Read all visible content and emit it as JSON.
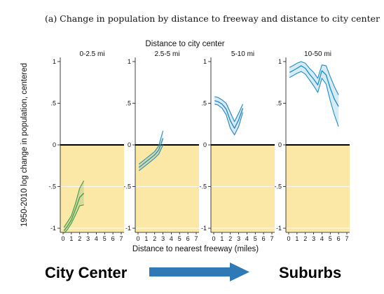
{
  "caption": "(a) Change in population by distance to freeway and distance to city center",
  "chart_data": {
    "type": "line",
    "title": "Distance to city center",
    "xlabel": "Distance to nearest freeway (miles)",
    "ylabel": "1950-2010 log change in population, centered",
    "ylim": [
      -1.05,
      1.05
    ],
    "xlim": [
      0,
      7
    ],
    "xticks": [
      "0",
      "1",
      "2",
      "3",
      "4",
      "5",
      "6",
      "7"
    ],
    "yticks": [
      {
        "value": 1,
        "label": "1"
      },
      {
        "value": 0.5,
        "label": ".5"
      },
      {
        "value": 0,
        "label": "0"
      },
      {
        "value": -0.5,
        "label": "-.5"
      },
      {
        "value": -1,
        "label": "-1"
      }
    ],
    "shading": "below zero (yellow)",
    "panels": [
      {
        "name": "0-2.5 mi",
        "color": "#3f9a52",
        "x": [
          0.1,
          0.5,
          1.0,
          1.5,
          2.0,
          2.5
        ],
        "y": [
          -1.03,
          -0.98,
          -0.9,
          -0.77,
          -0.63,
          -0.58
        ],
        "lower": [
          -1.06,
          -1.02,
          -0.94,
          -0.84,
          -0.73,
          -0.72
        ],
        "upper": [
          -0.99,
          -0.93,
          -0.85,
          -0.7,
          -0.52,
          -0.43
        ]
      },
      {
        "name": "2.5-5 mi",
        "color": "#2e8fb3",
        "x": [
          0.1,
          0.5,
          1.0,
          1.5,
          2.0,
          2.5,
          3.0
        ],
        "y": [
          -0.27,
          -0.24,
          -0.2,
          -0.16,
          -0.12,
          -0.06,
          0.08
        ],
        "lower": [
          -0.31,
          -0.28,
          -0.24,
          -0.2,
          -0.16,
          -0.11,
          0.0
        ],
        "upper": [
          -0.23,
          -0.2,
          -0.16,
          -0.12,
          -0.08,
          -0.01,
          0.17
        ]
      },
      {
        "name": "5-10 mi",
        "color": "#1f86c0",
        "x": [
          0.1,
          0.5,
          1.0,
          1.5,
          2.0,
          2.5,
          3.0,
          3.5
        ],
        "y": [
          0.53,
          0.52,
          0.49,
          0.43,
          0.29,
          0.2,
          0.3,
          0.44
        ],
        "lower": [
          0.49,
          0.48,
          0.44,
          0.36,
          0.2,
          0.12,
          0.22,
          0.39
        ],
        "upper": [
          0.58,
          0.57,
          0.54,
          0.5,
          0.39,
          0.28,
          0.38,
          0.49
        ]
      },
      {
        "name": "10-50 mi",
        "color": "#1a8ec4",
        "x": [
          0.1,
          0.5,
          1.0,
          1.5,
          2.0,
          2.5,
          3.0,
          3.5,
          4.0,
          4.5,
          5.0,
          5.5,
          6.0
        ],
        "y": [
          0.87,
          0.89,
          0.92,
          0.95,
          0.92,
          0.85,
          0.79,
          0.72,
          0.89,
          0.84,
          0.68,
          0.55,
          0.46
        ],
        "lower": [
          0.81,
          0.83,
          0.86,
          0.88,
          0.85,
          0.78,
          0.71,
          0.63,
          0.8,
          0.73,
          0.53,
          0.36,
          0.22
        ],
        "upper": [
          0.93,
          0.95,
          0.98,
          1.0,
          0.98,
          0.92,
          0.87,
          0.8,
          0.96,
          0.95,
          0.82,
          0.7,
          0.6
        ]
      }
    ]
  },
  "labels": {
    "left": "City Center",
    "right": "Suburbs"
  },
  "colors": {
    "shade": "#fbe8a6",
    "arrow": "#2f79b7",
    "zero_line": "#000000"
  }
}
